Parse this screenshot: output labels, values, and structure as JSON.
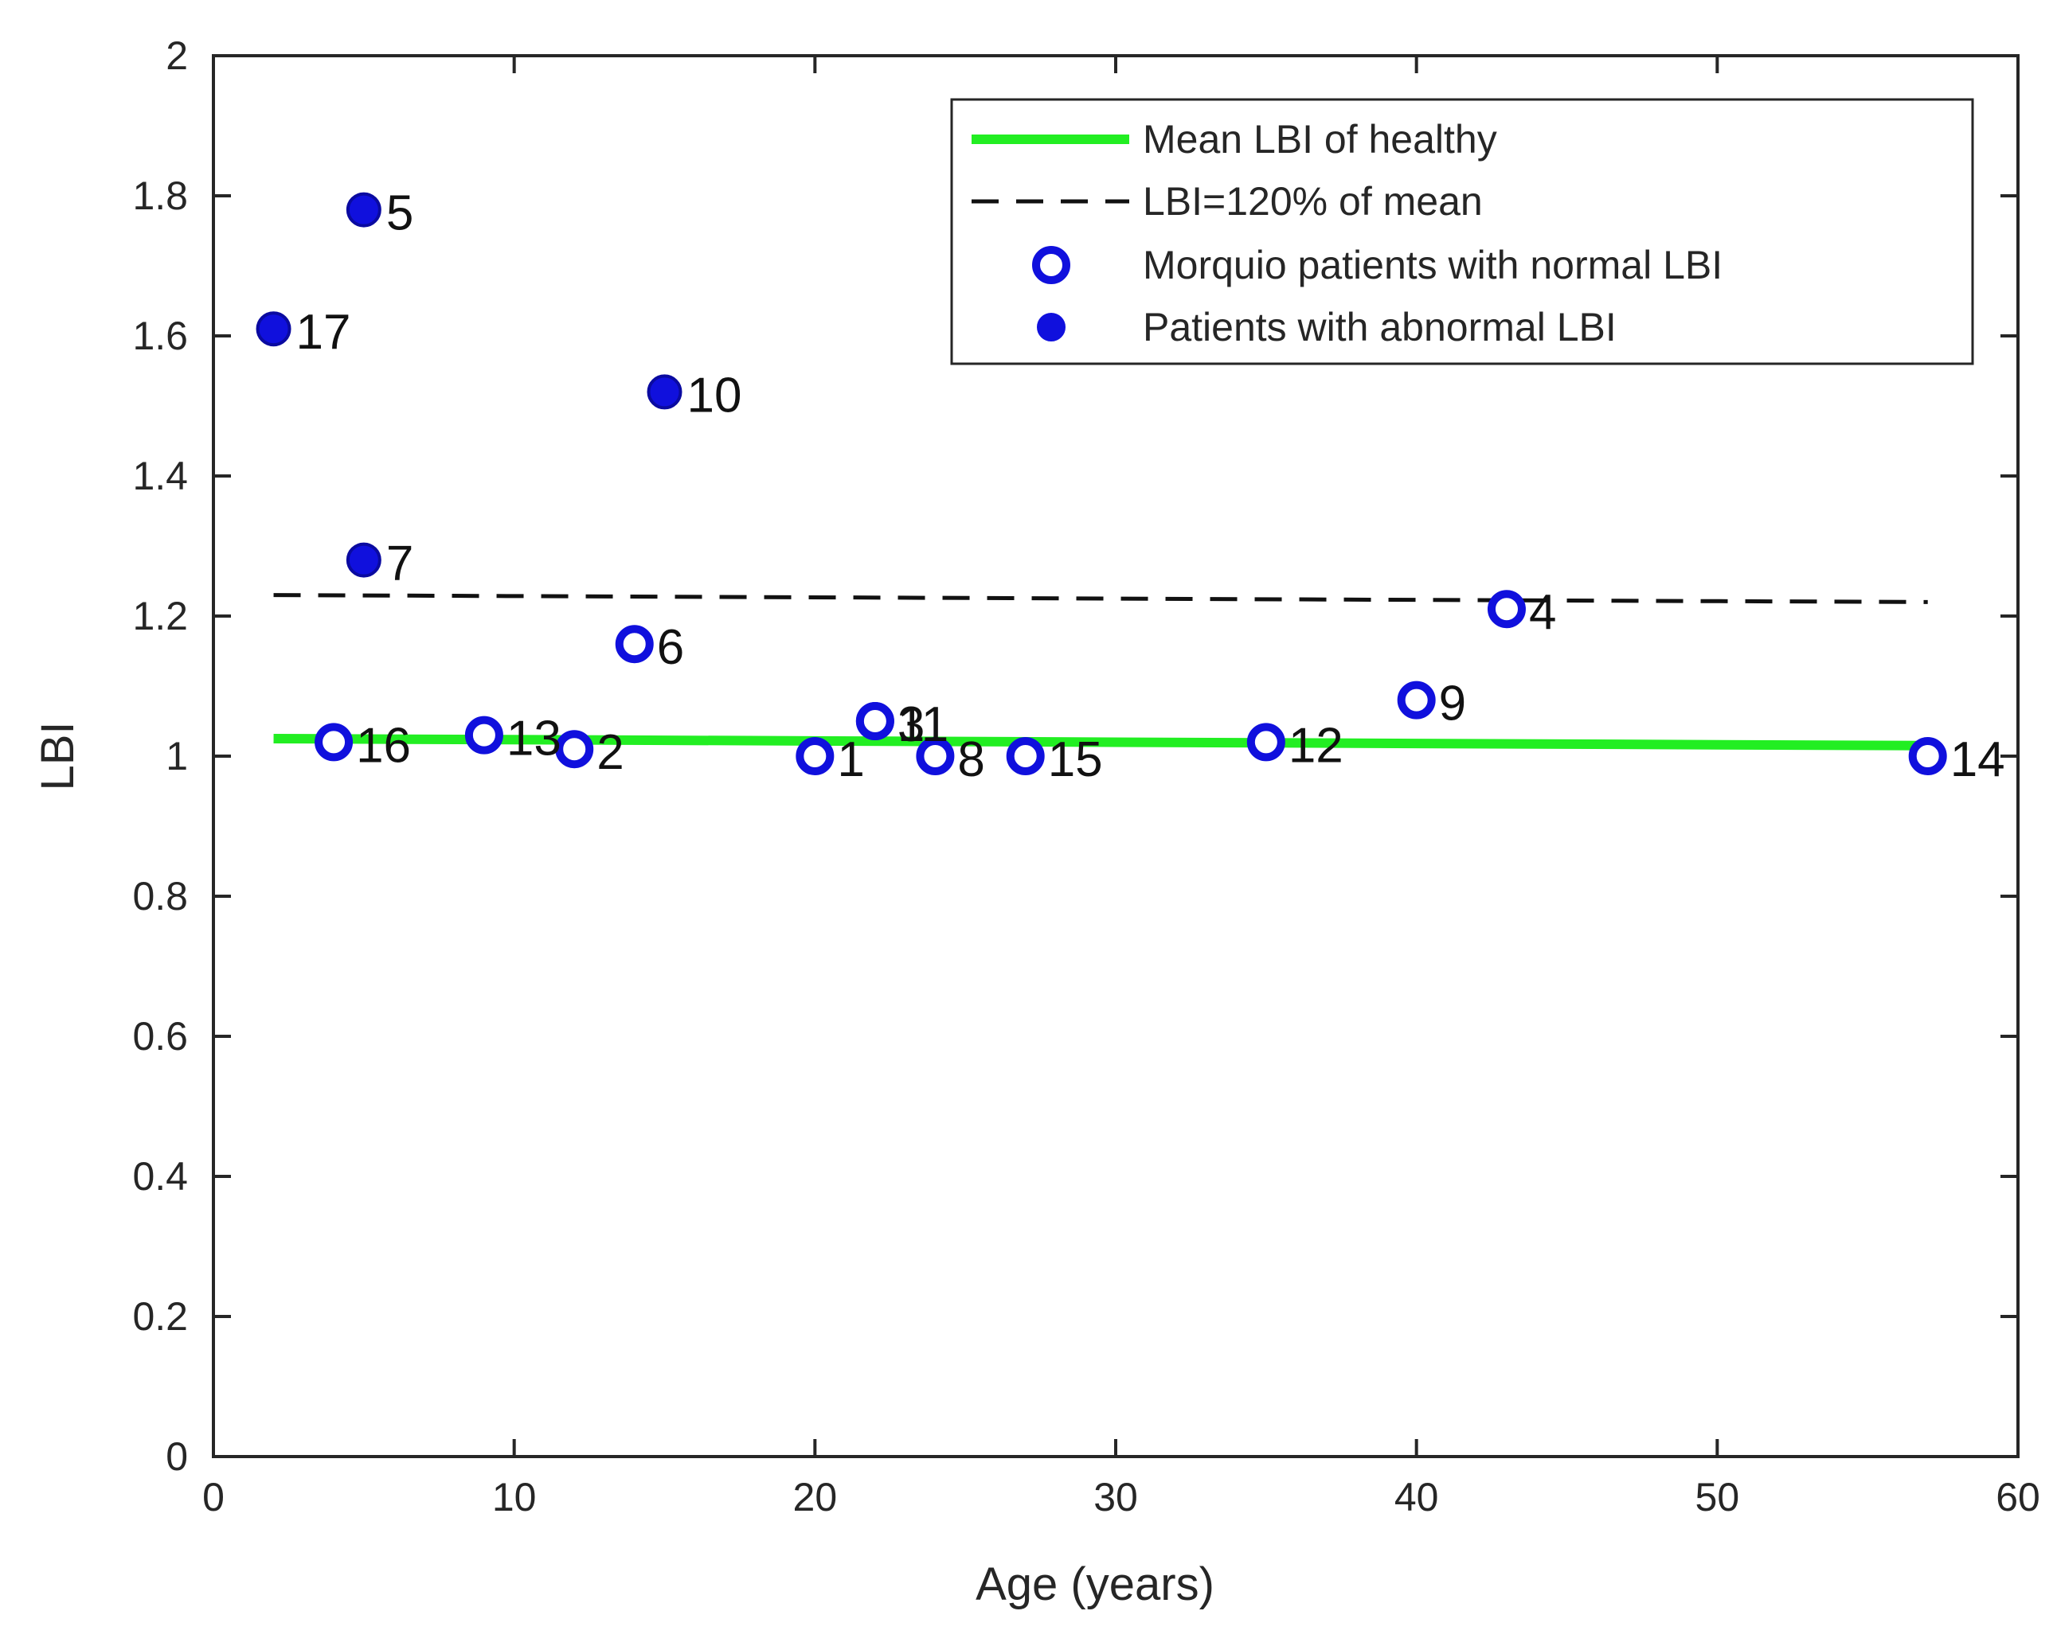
{
  "chart_data": {
    "type": "scatter",
    "xlabel": "Age (years)",
    "ylabel": "LBI",
    "xlim": [
      0,
      60
    ],
    "ylim": [
      0,
      2
    ],
    "xticks": [
      0,
      10,
      20,
      30,
      40,
      50,
      60
    ],
    "xtick_labels": [
      "0",
      "10",
      "20",
      "30",
      "40",
      "50",
      "60"
    ],
    "yticks": [
      0,
      0.2,
      0.4,
      0.6,
      0.8,
      1,
      1.2,
      1.4,
      1.6,
      1.8,
      2
    ],
    "ytick_labels": [
      "0",
      "0.2",
      "0.4",
      "0.6",
      "0.8",
      "1",
      "1.2",
      "1.4",
      "1.6",
      "1.8",
      "2"
    ],
    "grid": false,
    "legend_position": "top-right",
    "colors": {
      "mean_line": "#22ee22",
      "threshold_line": "#111111",
      "marker": "#1010dd",
      "axes": "#262626"
    },
    "mean_line": {
      "name": "Mean LBI of healthy",
      "x": [
        2,
        57
      ],
      "y": [
        1.025,
        1.015
      ]
    },
    "threshold_line": {
      "name": "LBI=120% of mean",
      "x": [
        2,
        57
      ],
      "y": [
        1.23,
        1.22
      ]
    },
    "series": [
      {
        "name": "Morquio patients with normal LBI",
        "marker": "open-circle",
        "points": [
          {
            "label": "16",
            "x": 4,
            "y": 1.02
          },
          {
            "label": "13",
            "x": 9,
            "y": 1.03
          },
          {
            "label": "2",
            "x": 12,
            "y": 1.01
          },
          {
            "label": "6",
            "x": 14,
            "y": 1.16
          },
          {
            "label": "1",
            "x": 20,
            "y": 1.0
          },
          {
            "label": "3",
            "x": 22,
            "y": 1.05
          },
          {
            "label": "11",
            "x": 22,
            "y": 1.05
          },
          {
            "label": "8",
            "x": 24,
            "y": 1.0
          },
          {
            "label": "15",
            "x": 27,
            "y": 1.0
          },
          {
            "label": "12",
            "x": 35,
            "y": 1.02
          },
          {
            "label": "9",
            "x": 40,
            "y": 1.08
          },
          {
            "label": "4",
            "x": 43,
            "y": 1.21
          },
          {
            "label": "14",
            "x": 57,
            "y": 1.0
          }
        ]
      },
      {
        "name": "Patients with abnormal LBI",
        "marker": "filled-circle",
        "points": [
          {
            "label": "17",
            "x": 2,
            "y": 1.61
          },
          {
            "label": "5",
            "x": 5,
            "y": 1.78
          },
          {
            "label": "7",
            "x": 5,
            "y": 1.28
          },
          {
            "label": "10",
            "x": 15,
            "y": 1.52
          }
        ]
      }
    ]
  }
}
